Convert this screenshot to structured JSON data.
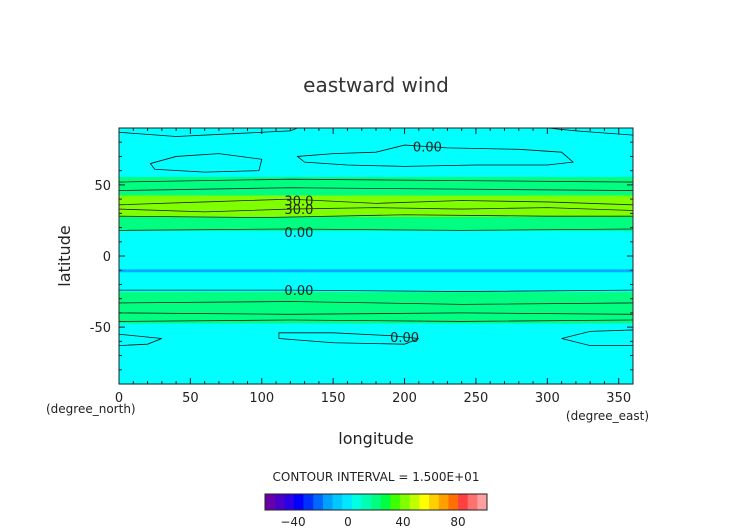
{
  "chart_data": {
    "type": "heatmap",
    "title": "eastward wind",
    "xlabel": "longitude",
    "ylabel": "latitude",
    "x_unit": "(degree_east)",
    "y_unit": "(degree_north)",
    "xlim": [
      0,
      360
    ],
    "ylim": [
      -90,
      90
    ],
    "x_ticks": [
      0,
      50,
      100,
      150,
      200,
      250,
      300,
      350
    ],
    "y_ticks": [
      -50,
      0,
      50
    ],
    "contour_interval_text": "CONTOUR INTERVAL = 1.500E+01",
    "colorbar_ticks": [
      -40,
      0,
      40,
      80
    ],
    "colorbar_colors": [
      "#6a00a8",
      "#4b00c8",
      "#2a00e6",
      "#0000ff",
      "#0030ff",
      "#0068ff",
      "#00a0ff",
      "#00c8ff",
      "#00e8ff",
      "#00ffe0",
      "#00ffb0",
      "#00ff80",
      "#00ff40",
      "#40ff00",
      "#80ff00",
      "#c0ff00",
      "#ffff00",
      "#ffd000",
      "#ffa000",
      "#ff7000",
      "#ff4040",
      "#ff7070",
      "#ffa0a0"
    ],
    "latitude_profile": {
      "lat": [
        -90,
        -80,
        -70,
        -60,
        -50,
        -45,
        -40,
        -35,
        -30,
        -25,
        -20,
        -15,
        -10,
        -5,
        0,
        5,
        10,
        15,
        20,
        25,
        30,
        35,
        40,
        45,
        50,
        55,
        60,
        65,
        70,
        75,
        80,
        85,
        90
      ],
      "value": [
        5,
        5,
        3,
        -3,
        5,
        9,
        14,
        16,
        13,
        8,
        2,
        -4,
        -8,
        -5,
        -3,
        -1,
        0,
        4,
        10,
        17,
        26,
        32,
        28,
        20,
        15,
        9,
        3,
        0,
        2,
        5,
        4,
        -2,
        0
      ]
    },
    "contour_labels": [
      {
        "text": "0.00",
        "lon": 216,
        "lat": 77
      },
      {
        "text": "30.0",
        "lon": 126,
        "lat": 39
      },
      {
        "text": "30.0",
        "lon": 126,
        "lat": 33
      },
      {
        "text": "0.00",
        "lon": 126,
        "lat": 17
      },
      {
        "text": "0.00",
        "lon": 126,
        "lat": -24
      },
      {
        "text": "0.00",
        "lon": 200,
        "lat": -57
      }
    ]
  }
}
